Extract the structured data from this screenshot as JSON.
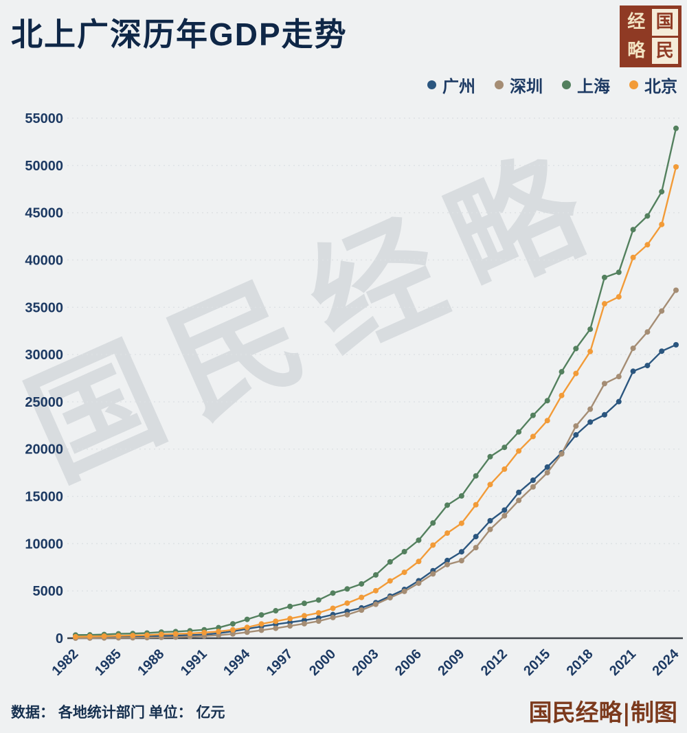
{
  "header": {
    "title": "北上广深历年GDP走势"
  },
  "logo": {
    "chars": [
      "经",
      "国",
      "略",
      "民"
    ]
  },
  "watermark": "国民经略",
  "footer": {
    "source": "数据： 各地统计部门  单位： 亿元",
    "credit": "国民经略|制图"
  },
  "chart_data": {
    "type": "line",
    "title": "北上广深历年GDP走势",
    "unit": "亿元",
    "xlabel": "",
    "ylabel": "",
    "ylim": [
      0,
      55000
    ],
    "grid": "faint-dotted-horizontal",
    "legend_position": "top-right",
    "x": [
      1982,
      1983,
      1984,
      1985,
      1986,
      1987,
      1988,
      1989,
      1990,
      1991,
      1992,
      1993,
      1994,
      1995,
      1996,
      1997,
      1998,
      1999,
      2000,
      2001,
      2002,
      2003,
      2004,
      2005,
      2006,
      2007,
      2008,
      2009,
      2010,
      2011,
      2012,
      2013,
      2014,
      2015,
      2016,
      2017,
      2018,
      2019,
      2020,
      2021,
      2022,
      2023,
      2024
    ],
    "x_tick_years": [
      1982,
      1985,
      1988,
      1991,
      1994,
      1997,
      2000,
      2003,
      2006,
      2009,
      2012,
      2015,
      2018,
      2021,
      2024
    ],
    "y_ticks": [
      0,
      5000,
      10000,
      15000,
      20000,
      25000,
      30000,
      35000,
      40000,
      45000,
      50000,
      55000
    ],
    "series": [
      {
        "name": "广州",
        "color": "#2b567f",
        "values": [
          63,
          72,
          98,
          125,
          144,
          180,
          238,
          276,
          320,
          386,
          518,
          730,
          986,
          1243,
          1468,
          1678,
          1893,
          2139,
          2493,
          2842,
          3204,
          3759,
          4451,
          5154,
          6074,
          7140,
          8216,
          9138,
          10748,
          12423,
          13551,
          15420,
          16707,
          18100,
          19611,
          21503,
          22859,
          23629,
          25019,
          28232,
          28839,
          30356,
          31033
        ]
      },
      {
        "name": "深圳",
        "color": "#a58d74",
        "values": [
          8,
          13,
          23,
          39,
          42,
          56,
          87,
          116,
          172,
          237,
          317,
          453,
          635,
          843,
          1048,
          1297,
          1535,
          1804,
          2187,
          2482,
          2969,
          3585,
          4282,
          4951,
          5814,
          6802,
          7787,
          8201,
          9582,
          11506,
          12950,
          14572,
          16002,
          17503,
          19493,
          22438,
          24222,
          26927,
          27670,
          30665,
          32388,
          34606,
          36802
        ]
      },
      {
        "name": "上海",
        "color": "#53805e",
        "values": [
          337,
          352,
          391,
          467,
          491,
          545,
          648,
          697,
          782,
          894,
          1114,
          1519,
          1991,
          2463,
          2902,
          3360,
          3688,
          4035,
          4771,
          5210,
          5741,
          6694,
          8073,
          9154,
          10366,
          12189,
          14070,
          15046,
          17166,
          19196,
          20182,
          21818,
          23568,
          25123,
          28179,
          30633,
          32680,
          38155,
          38701,
          43215,
          44653,
          47219,
          53927
        ]
      },
      {
        "name": "北京",
        "color": "#f29b38",
        "values": [
          155,
          183,
          217,
          257,
          285,
          327,
          410,
          456,
          501,
          599,
          709,
          886,
          1145,
          1508,
          1789,
          2077,
          2377,
          2679,
          3162,
          3708,
          4315,
          5024,
          6060,
          6970,
          8118,
          9847,
          11115,
          12153,
          14114,
          16252,
          17879,
          19801,
          21331,
          23015,
          25669,
          28000,
          30320,
          35371,
          36103,
          40270,
          41611,
          43761,
          49843
        ]
      }
    ]
  }
}
